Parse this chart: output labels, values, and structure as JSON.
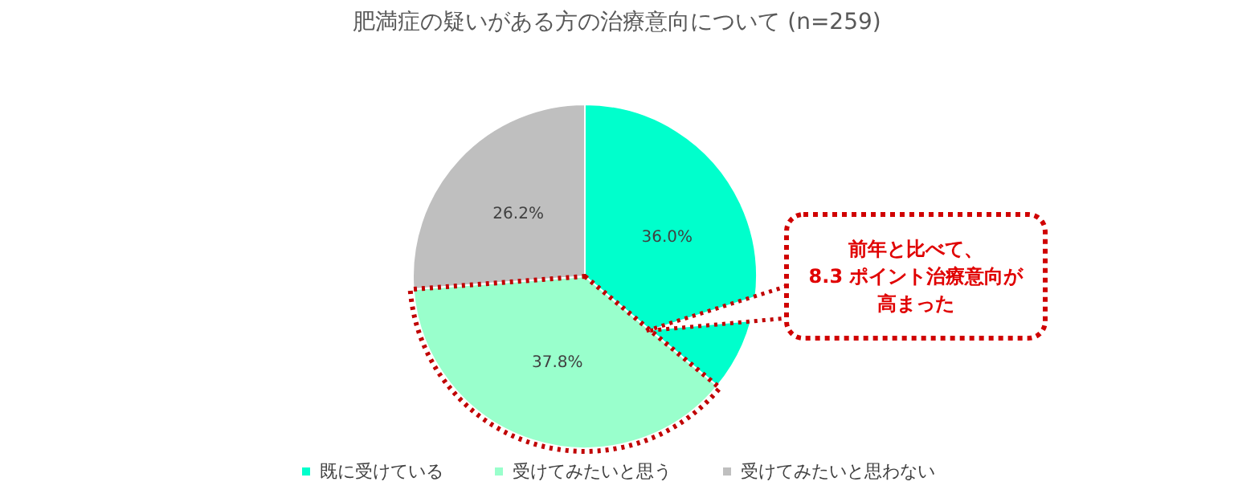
{
  "chart_data": {
    "type": "pie",
    "title": "肥満症の疑いがある方の治療意向について (n=259)",
    "categories": [
      "既に受けている",
      "受けてみたいと思う",
      "受けてみたいと思わない"
    ],
    "values": [
      36.0,
      37.8,
      26.2
    ],
    "colors": [
      "#00ffcc",
      "#99ffcc",
      "#bfbfbf"
    ],
    "value_labels": [
      "36.0%",
      "37.8%",
      "26.2%"
    ],
    "legend": "bottom",
    "annotations": [
      "前年と比べて、",
      "8.3 ポイント治療意向が",
      "高まった"
    ]
  }
}
